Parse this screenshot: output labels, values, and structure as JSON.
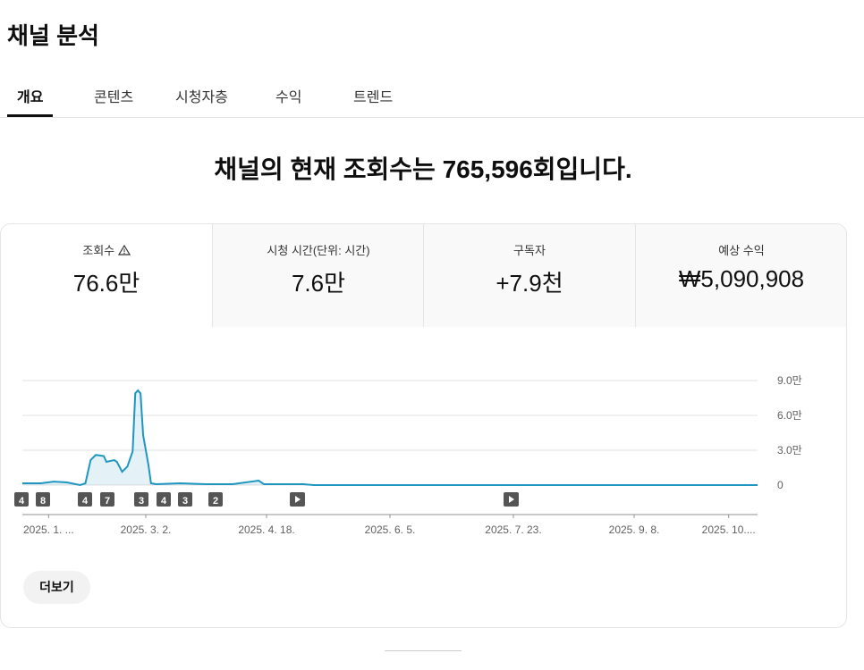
{
  "header": {
    "title": "채널 분석"
  },
  "tabs": [
    "개요",
    "콘텐츠",
    "시청자층",
    "수익",
    "트렌드"
  ],
  "headline": "채널의 현재 조회수는 765,596회입니다.",
  "metrics": [
    {
      "label": "조회수",
      "value": "76.6만"
    },
    {
      "label": "시청 시간(단위: 시간)",
      "value": "7.6만"
    },
    {
      "label": "구독자",
      "value": "+7.9천"
    },
    {
      "label": "예상 수익",
      "value": "₩5,090,908"
    }
  ],
  "chart_data": {
    "type": "line",
    "x": [
      0,
      7,
      12,
      17,
      22,
      24,
      26,
      28,
      31,
      32,
      35,
      36,
      38,
      40,
      42,
      43,
      44,
      45,
      46,
      48,
      49,
      51,
      60,
      70,
      80,
      90,
      92,
      107,
      111,
      280
    ],
    "series": [
      {
        "name": "조회수",
        "color": "#1f96c0",
        "values": [
          1500,
          1500,
          3000,
          2300,
          0,
          1500,
          21500,
          26000,
          25000,
          20000,
          21500,
          20000,
          11500,
          16000,
          29000,
          79000,
          81500,
          79000,
          43000,
          17500,
          1500,
          800,
          1500,
          800,
          800,
          3800,
          800,
          800,
          0,
          0
        ]
      }
    ],
    "xlim": [
      0,
      280
    ],
    "xticks": [
      {
        "value": 10,
        "label": "2025. 1. ..."
      },
      {
        "value": 47,
        "label": "2025. 3. 2."
      },
      {
        "value": 93,
        "label": "2025. 4. 18."
      },
      {
        "value": 140,
        "label": "2025. 6. 5."
      },
      {
        "value": 187,
        "label": "2025. 7. 23."
      },
      {
        "value": 233,
        "label": "2025. 9. 8."
      },
      {
        "value": 269,
        "label": "2025. 10...."
      }
    ],
    "ylim": [
      0,
      90000
    ],
    "yticks": [
      0,
      {
        "value": 30000,
        "label": "3.0만"
      },
      {
        "value": 60000,
        "label": "6.0만"
      },
      {
        "value": 90000,
        "label": "9.0만"
      }
    ],
    "grid": true,
    "event_markers": [
      "4",
      "8",
      "4",
      "7",
      "3",
      "4",
      "3",
      "2"
    ]
  },
  "more_button": "더보기"
}
